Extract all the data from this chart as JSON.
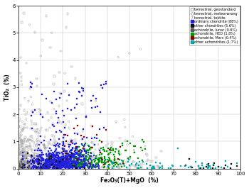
{
  "title": "",
  "xlabel": "Fe₂O₃(T)+MgO  (%)",
  "ylabel": "TiO₂  (%)",
  "xlim": [
    0,
    100
  ],
  "ylim": [
    0,
    6
  ],
  "xticks": [
    0,
    10,
    20,
    30,
    40,
    50,
    60,
    70,
    80,
    90,
    100
  ],
  "yticks": [
    0,
    1,
    2,
    3,
    4,
    5,
    6
  ],
  "grid": true,
  "background_color": "#ffffff",
  "seed": 42
}
